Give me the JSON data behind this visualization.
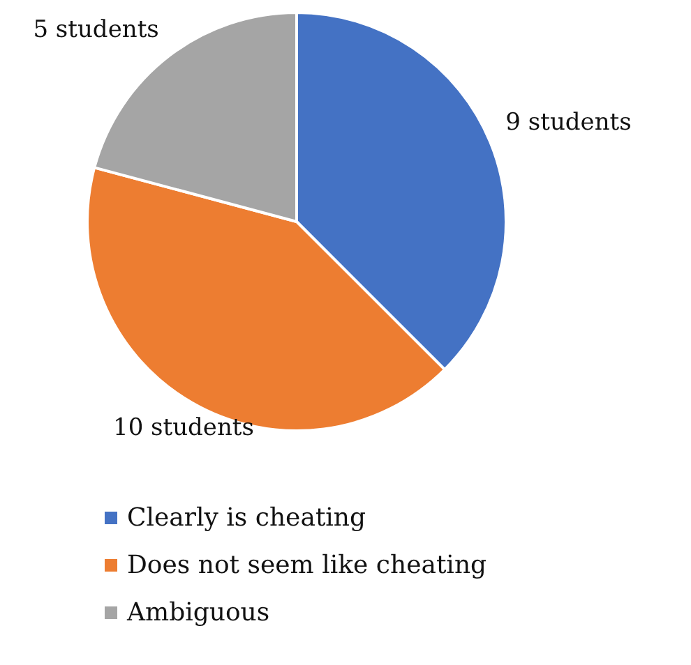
{
  "chart_data": {
    "type": "pie",
    "categories": [
      "Clearly is cheating",
      "Does not seem like cheating",
      "Ambiguous"
    ],
    "values": [
      9,
      10,
      5
    ],
    "colors": [
      "#4472c4",
      "#ed7d31",
      "#a5a5a5"
    ],
    "value_labels": [
      "9 students",
      "10 students",
      "5 students"
    ],
    "legend": "bottom"
  }
}
